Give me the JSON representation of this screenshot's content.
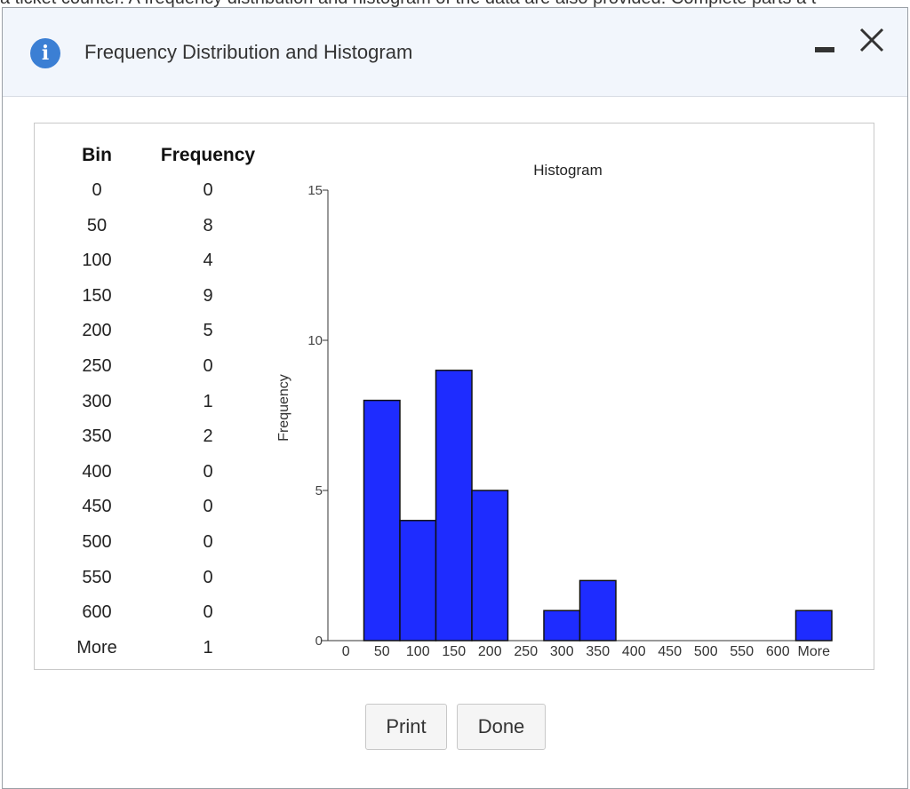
{
  "background_text": "a ticket counter. A frequency distribution and histogram of the data are also provided. Complete parts a t",
  "dialog": {
    "title": "Frequency Distribution and Histogram",
    "info_icon": "info-icon",
    "minimize_icon": "minimize-icon",
    "close_icon": "close-icon"
  },
  "table": {
    "headers": [
      "Bin",
      "Frequency"
    ],
    "rows": [
      {
        "bin": "0",
        "freq": "0"
      },
      {
        "bin": "50",
        "freq": "8"
      },
      {
        "bin": "100",
        "freq": "4"
      },
      {
        "bin": "150",
        "freq": "9"
      },
      {
        "bin": "200",
        "freq": "5"
      },
      {
        "bin": "250",
        "freq": "0"
      },
      {
        "bin": "300",
        "freq": "1"
      },
      {
        "bin": "350",
        "freq": "2"
      },
      {
        "bin": "400",
        "freq": "0"
      },
      {
        "bin": "450",
        "freq": "0"
      },
      {
        "bin": "500",
        "freq": "0"
      },
      {
        "bin": "550",
        "freq": "0"
      },
      {
        "bin": "600",
        "freq": "0"
      },
      {
        "bin": "More",
        "freq": "1"
      }
    ]
  },
  "chart_data": {
    "type": "bar",
    "title": "Histogram",
    "xlabel": "",
    "ylabel": "Frequency",
    "categories": [
      "0",
      "50",
      "100",
      "150",
      "200",
      "250",
      "300",
      "350",
      "400",
      "450",
      "500",
      "550",
      "600",
      "More"
    ],
    "values": [
      0,
      8,
      4,
      9,
      5,
      0,
      1,
      2,
      0,
      0,
      0,
      0,
      0,
      1
    ],
    "yticks": [
      0,
      5,
      10,
      15
    ],
    "ylim": [
      0,
      15
    ],
    "grid": false,
    "bar_color": "#1e2cff"
  },
  "buttons": {
    "print": "Print",
    "done": "Done"
  },
  "colors": {
    "titlebar_bg": "#f2f6fc",
    "info_icon": "#3b7fd4"
  }
}
